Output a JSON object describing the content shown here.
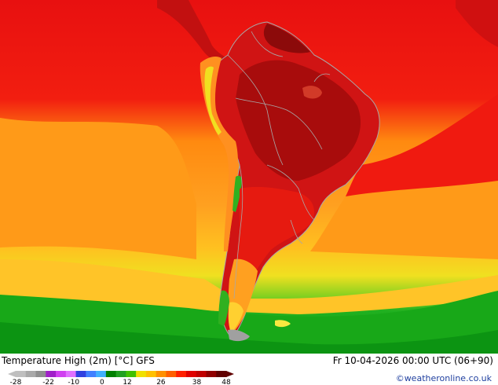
{
  "header": {
    "title": "Temperature High (2m) [°C] GFS",
    "datetime": "Fr 10-04-2026 00:00 UTC (06+90)",
    "credit": "©weatheronline.co.uk"
  },
  "legend": {
    "ticks": [
      "-28",
      "-22",
      "-10",
      "0",
      "12",
      "26",
      "38",
      "48"
    ],
    "colors": [
      "#bfbfbf",
      "#a9a9a9",
      "#8f8f8f",
      "#a020c8",
      "#d040f0",
      "#e070ff",
      "#3040e0",
      "#4080ff",
      "#40b0ff",
      "#008000",
      "#20a020",
      "#40c000",
      "#f0e000",
      "#ffc000",
      "#ff9000",
      "#ff6000",
      "#ff2000",
      "#e00000",
      "#c00000",
      "#900000",
      "#600000"
    ]
  },
  "colors": {
    "background": "#ffffff",
    "land_border": "#a8a8a8",
    "hot_dark": "#b50d0d",
    "hot": "#e81010",
    "warm": "#ff8a10",
    "mild": "#ffc020",
    "cool": "#f0e020",
    "cold": "#20b020"
  }
}
